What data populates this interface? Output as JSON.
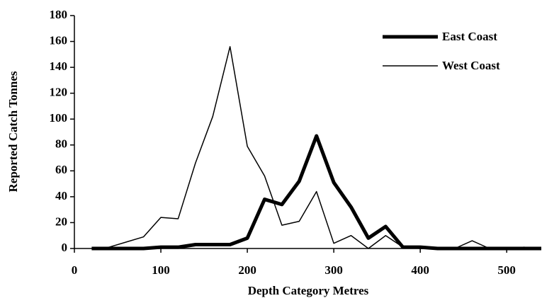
{
  "chart_data": {
    "type": "line",
    "x_label": "Depth Category Metres",
    "y_label": "Reported Catch Tonnes",
    "x": [
      20,
      40,
      60,
      80,
      100,
      120,
      140,
      160,
      180,
      200,
      220,
      240,
      260,
      280,
      300,
      320,
      340,
      360,
      380,
      400,
      420,
      440,
      460,
      480,
      500,
      520,
      540
    ],
    "series": [
      {
        "name": "East Coast",
        "color": "#000000",
        "line_width": 5,
        "values": [
          0,
          0,
          0,
          0,
          1,
          1,
          3,
          3,
          3,
          8,
          38,
          34,
          52,
          87,
          51,
          32,
          8,
          17,
          1,
          1,
          0,
          0,
          0,
          0,
          0,
          0,
          0
        ]
      },
      {
        "name": "West Coast",
        "color": "#000000",
        "line_width": 1.5,
        "values": [
          0,
          1,
          5,
          9,
          24,
          23,
          66,
          102,
          156,
          79,
          56,
          18,
          21,
          44,
          4,
          10,
          0,
          10,
          1,
          0,
          0,
          0,
          6,
          0,
          0,
          1,
          0
        ]
      }
    ],
    "xlim": [
      0,
      540
    ],
    "xticks": [
      0,
      100,
      200,
      300,
      400,
      500
    ],
    "ylim": [
      0,
      180
    ],
    "yticks": [
      0,
      20,
      40,
      60,
      80,
      100,
      120,
      140,
      160,
      180
    ],
    "grid": false,
    "legend": "upper right"
  }
}
